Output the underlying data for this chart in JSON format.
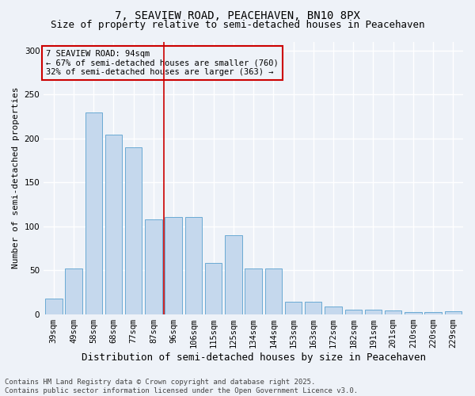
{
  "title_line1": "7, SEAVIEW ROAD, PEACEHAVEN, BN10 8PX",
  "title_line2": "Size of property relative to semi-detached houses in Peacehaven",
  "xlabel": "Distribution of semi-detached houses by size in Peacehaven",
  "ylabel": "Number of semi-detached properties",
  "categories": [
    "39sqm",
    "49sqm",
    "58sqm",
    "68sqm",
    "77sqm",
    "87sqm",
    "96sqm",
    "106sqm",
    "115sqm",
    "125sqm",
    "134sqm",
    "144sqm",
    "153sqm",
    "163sqm",
    "172sqm",
    "182sqm",
    "191sqm",
    "201sqm",
    "210sqm",
    "220sqm",
    "229sqm"
  ],
  "values": [
    18,
    52,
    229,
    204,
    190,
    108,
    110,
    110,
    58,
    90,
    52,
    52,
    14,
    14,
    9,
    5,
    5,
    4,
    2,
    2,
    3
  ],
  "bar_color": "#c5d8ed",
  "bar_edge_color": "#6aaad4",
  "annotation_box_color": "#cc0000",
  "vline_color": "#cc0000",
  "vline_index": 6,
  "annotation_text_line1": "7 SEAVIEW ROAD: 94sqm",
  "annotation_text_line2": "← 67% of semi-detached houses are smaller (760)",
  "annotation_text_line3": "32% of semi-detached houses are larger (363) →",
  "footnote_line1": "Contains HM Land Registry data © Crown copyright and database right 2025.",
  "footnote_line2": "Contains public sector information licensed under the Open Government Licence v3.0.",
  "ylim": [
    0,
    310
  ],
  "yticks": [
    0,
    50,
    100,
    150,
    200,
    250,
    300
  ],
  "background_color": "#eef2f8",
  "grid_color": "#ffffff",
  "title_fontsize": 10,
  "subtitle_fontsize": 9,
  "xlabel_fontsize": 9,
  "ylabel_fontsize": 8,
  "tick_fontsize": 7.5,
  "annotation_fontsize": 7.5,
  "footnote_fontsize": 6.5
}
